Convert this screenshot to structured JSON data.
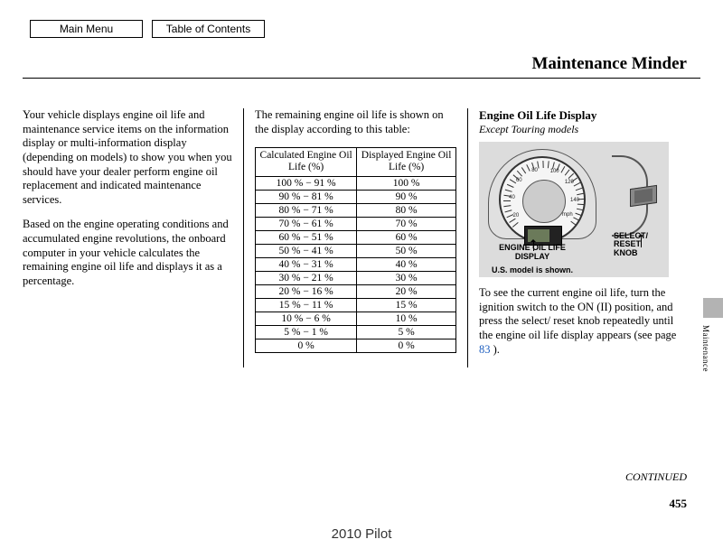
{
  "nav": {
    "main_menu": "Main Menu",
    "toc": "Table of Contents"
  },
  "title": "Maintenance Minder",
  "col1": {
    "p1": "Your vehicle displays engine oil life and maintenance service items on the information display or multi-information display (depending on models) to show you when you should have your dealer perform engine oil replacement and indicated maintenance services.",
    "p2": "Based on the engine operating conditions and accumulated engine revolutions, the onboard computer in your vehicle calculates the remaining engine oil life and displays it as a percentage."
  },
  "col2": {
    "intro": "The remaining engine oil life is shown on the display according to this table:",
    "table": {
      "head1": "Calculated Engine Oil Life (%)",
      "head2": "Displayed Engine Oil Life (%)",
      "rows": [
        [
          "100 % − 91 %",
          "100 %"
        ],
        [
          "90 % − 81 %",
          "90 %"
        ],
        [
          "80 % − 71 %",
          "80 %"
        ],
        [
          "70 % − 61 %",
          "70 %"
        ],
        [
          "60 % − 51 %",
          "60 %"
        ],
        [
          "50 % − 41 %",
          "50 %"
        ],
        [
          "40 % − 31 %",
          "40 %"
        ],
        [
          "30 % − 21 %",
          "30 %"
        ],
        [
          "20 % − 16 %",
          "20 %"
        ],
        [
          "15 % − 11 %",
          "15 %"
        ],
        [
          "10 % − 6 %",
          "10 %"
        ],
        [
          "5 % − 1 %",
          "5 %"
        ],
        [
          "0 %",
          "0 %"
        ]
      ]
    }
  },
  "col3": {
    "heading": "Engine Oil Life Display",
    "subheading": "Except Touring models",
    "diagram": {
      "label_display": "ENGINE OIL LIFE DISPLAY",
      "label_knob": "SELECT/ RESET KNOB",
      "note": "U.S. model is shown.",
      "dial_numbers": [
        "20",
        "40",
        "60",
        "80",
        "100",
        "120",
        "140"
      ],
      "dial_unit": "mph"
    },
    "body_a": "To see the current engine oil life, turn the ignition switch to the ON (II) position, and press the select/ reset knob repeatedly until the engine oil life display appears (see page ",
    "page_ref": "83",
    "body_b": " )."
  },
  "continued": "CONTINUED",
  "page_number": "455",
  "footer": "2010 Pilot",
  "side_tab": "Maintenance"
}
